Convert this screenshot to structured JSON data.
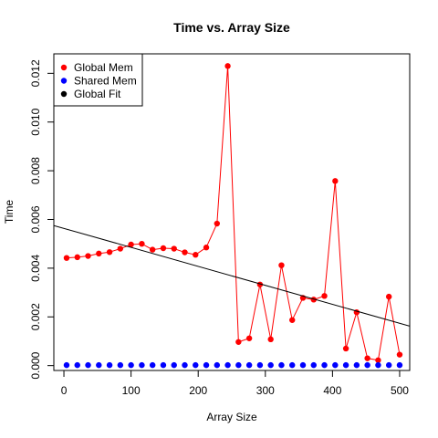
{
  "chart_data": {
    "type": "scatter",
    "title": "Time vs. Array Size",
    "xlabel": "Array Size",
    "ylabel": "Time",
    "xlim": [
      -15,
      515
    ],
    "ylim": [
      -0.0002,
      0.0128
    ],
    "x_ticks": [
      0,
      100,
      200,
      300,
      400,
      500
    ],
    "y_ticks": [
      0.0,
      0.002,
      0.004,
      0.006,
      0.008,
      0.01,
      0.012
    ],
    "y_tick_labels": [
      "0.000",
      "0.002",
      "0.004",
      "0.006",
      "0.008",
      "0.010",
      "0.012"
    ],
    "grid": false,
    "legend_position": "top-left",
    "series": [
      {
        "name": "Global Mem",
        "color": "#ff0000",
        "style": "line+points",
        "x": [
          4,
          20,
          36,
          52,
          68,
          84,
          100,
          116,
          132,
          148,
          164,
          180,
          196,
          212,
          228,
          244,
          260,
          276,
          292,
          308,
          324,
          340,
          356,
          372,
          388,
          404,
          420,
          436,
          452,
          468,
          484,
          500
        ],
        "y": [
          0.00442,
          0.00445,
          0.0045,
          0.0046,
          0.00466,
          0.0048,
          0.00497,
          0.005,
          0.00476,
          0.00482,
          0.0048,
          0.00465,
          0.00455,
          0.00485,
          0.00583,
          0.0123,
          0.00097,
          0.00112,
          0.00333,
          0.00108,
          0.00412,
          0.00187,
          0.00278,
          0.00271,
          0.00286,
          0.00758,
          0.0007,
          0.00219,
          0.0003,
          0.00022,
          0.00283,
          0.00045
        ]
      },
      {
        "name": "Shared Mem",
        "color": "#0000ff",
        "style": "points",
        "x": [
          4,
          20,
          36,
          52,
          68,
          84,
          100,
          116,
          132,
          148,
          164,
          180,
          196,
          212,
          228,
          244,
          260,
          276,
          292,
          308,
          324,
          340,
          356,
          372,
          388,
          404,
          420,
          436,
          452,
          468,
          484,
          500
        ],
        "y": [
          2e-05,
          2e-05,
          2e-05,
          2e-05,
          2e-05,
          2e-05,
          2e-05,
          2e-05,
          2e-05,
          2e-05,
          2e-05,
          2e-05,
          2e-05,
          2e-05,
          2e-05,
          2e-05,
          2e-05,
          2e-05,
          2e-05,
          2e-05,
          2e-05,
          2e-05,
          2e-05,
          2e-05,
          2e-05,
          2e-05,
          2e-05,
          2e-05,
          2e-05,
          2e-05,
          2e-05,
          2e-05
        ]
      },
      {
        "name": "Global Fit",
        "color": "#000000",
        "style": "line",
        "x": [
          -15,
          515
        ],
        "y": [
          0.00575,
          0.00162
        ]
      }
    ]
  }
}
